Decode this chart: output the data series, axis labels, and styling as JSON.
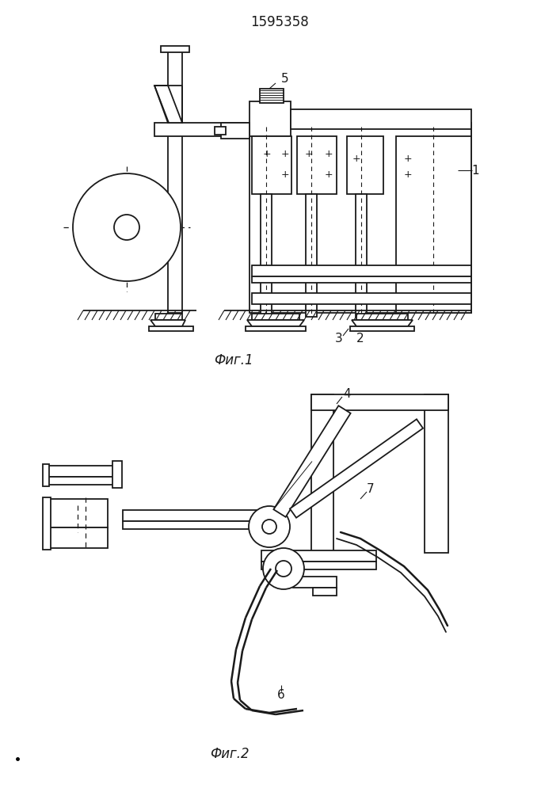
{
  "title": "1595358",
  "fig1_label": "Фиг.1",
  "fig2_label": "Фиг.2",
  "bg_color": "#ffffff",
  "lc": "#1a1a1a",
  "lw": 1.3
}
